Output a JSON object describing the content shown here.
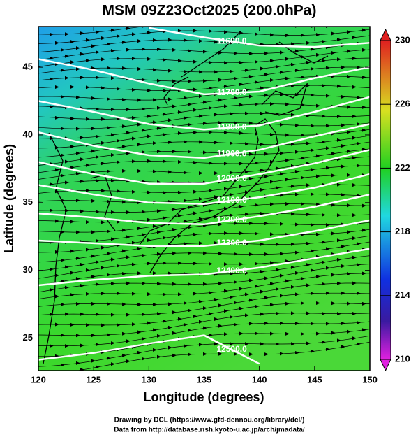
{
  "chart_data": {
    "type": "contour-map",
    "title": "MSM 09Z23Oct2025 (200.0hPa)",
    "xlabel": "Longitude (degrees)",
    "ylabel": "Latitude  (degrees)",
    "xlim": [
      120,
      150
    ],
    "xticks": [
      120,
      125,
      130,
      135,
      140,
      145,
      150
    ],
    "ylim": [
      22.6,
      48
    ],
    "yticks": [
      25,
      30,
      35,
      40,
      45
    ],
    "x": [
      120,
      125,
      130,
      135,
      140,
      145,
      150
    ],
    "contour_color": "#ffffff",
    "series": [
      {
        "level": 11600,
        "label": "11600.0",
        "values": [
          null,
          null,
          47.9,
          47.2,
          46.6,
          46.5,
          46.8
        ]
      },
      {
        "level": 11700,
        "label": "11700.0",
        "values": [
          45.6,
          44.8,
          43.8,
          43.0,
          43.2,
          44.2,
          45.0
        ]
      },
      {
        "level": 11800,
        "label": "11800.0",
        "values": [
          42.5,
          41.7,
          40.8,
          40.4,
          40.7,
          41.7,
          42.8
        ]
      },
      {
        "level": 11900,
        "label": "11900.0",
        "values": [
          40.2,
          39.2,
          38.5,
          38.3,
          38.9,
          39.9,
          40.8
        ]
      },
      {
        "level": 12000,
        "label": "12000.0",
        "values": [
          38.0,
          37.1,
          36.4,
          36.4,
          37.1,
          37.9,
          38.9
        ]
      },
      {
        "level": 12100,
        "label": "12100.0",
        "values": [
          36.3,
          35.6,
          35.0,
          34.9,
          35.4,
          36.1,
          37.1
        ]
      },
      {
        "level": 12200,
        "label": "12200.0",
        "values": [
          34.2,
          33.9,
          33.5,
          33.4,
          34.0,
          34.7,
          35.6
        ]
      },
      {
        "level": 12300,
        "label": "12300.0",
        "values": [
          32.2,
          32.0,
          31.8,
          31.8,
          32.2,
          32.9,
          33.7
        ]
      },
      {
        "level": 12400,
        "label": "12400.0",
        "values": [
          28.9,
          29.3,
          29.6,
          29.7,
          30.2,
          30.9,
          31.6
        ]
      },
      {
        "level": 12500,
        "label": "12500.0",
        "values": [
          23.4,
          23.9,
          24.6,
          25.2,
          23.1,
          null,
          null
        ]
      }
    ],
    "colorbar": {
      "lim": [
        210,
        230
      ],
      "ticks": [
        210,
        214,
        218,
        222,
        226,
        230
      ]
    },
    "credits": [
      "Drawing by DCL (https://www.gfd-dennou.org/library/dcl/)",
      "Data from http://database.rish.kyoto-u.ac.jp/arch/jmadata/"
    ]
  }
}
